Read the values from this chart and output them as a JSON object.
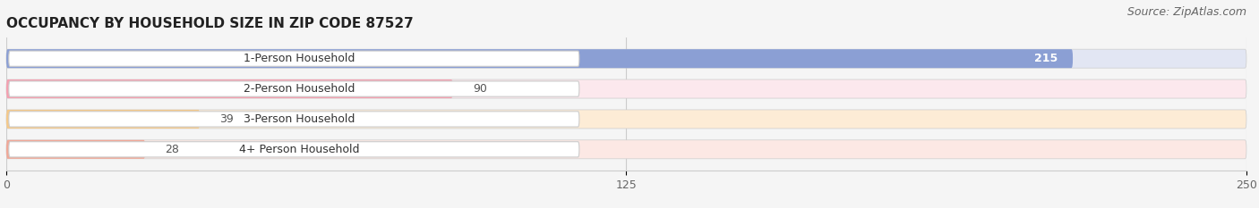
{
  "title": "OCCUPANCY BY HOUSEHOLD SIZE IN ZIP CODE 87527",
  "source": "Source: ZipAtlas.com",
  "categories": [
    "1-Person Household",
    "2-Person Household",
    "3-Person Household",
    "4+ Person Household"
  ],
  "values": [
    215,
    90,
    39,
    28
  ],
  "bar_colors": [
    "#8b9fd4",
    "#f4a0b0",
    "#f5c98a",
    "#f0a898"
  ],
  "bar_bg_colors": [
    "#e2e6f3",
    "#fce8ed",
    "#fdecd6",
    "#fce8e4"
  ],
  "value_text_colors": [
    "white",
    "#555555",
    "#555555",
    "#555555"
  ],
  "xlim": [
    0,
    250
  ],
  "xticks": [
    0,
    125,
    250
  ],
  "label_fontsize": 9.0,
  "value_fontsize": 9.0,
  "title_fontsize": 11,
  "source_fontsize": 9,
  "bar_height": 0.62,
  "background_color": "#f5f5f5",
  "label_pill_color": "white",
  "label_text_color": "#333333",
  "rounding_size": 0.28
}
